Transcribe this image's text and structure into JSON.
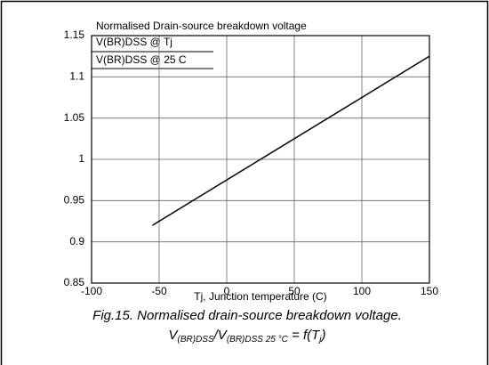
{
  "chart_data": {
    "type": "line",
    "title": "Normalised Drain-source breakdown voltage",
    "ylabel_numerator": "V(BR)DSS @ Tj",
    "ylabel_denominator": "V(BR)DSS @ 25 C",
    "xlabel": "Tj, Junction temperature (C)",
    "caption": "Fig.15.  Normalised drain-source breakdown voltage.",
    "formula": [
      "V",
      "(BR)DSS",
      "/V",
      "(BR)DSS 25 °C",
      " = f(T",
      "j",
      ")"
    ],
    "x": [
      -55,
      150
    ],
    "values": [
      0.92,
      1.125
    ],
    "color": "#000000",
    "xlim": [
      -100,
      150
    ],
    "xticks": [
      -100,
      -50,
      0,
      50,
      100,
      150
    ],
    "ylim": [
      0.85,
      1.15
    ],
    "yticks": [
      0.85,
      0.9,
      0.95,
      1,
      1.05,
      1.1,
      1.15
    ],
    "grid": true
  }
}
